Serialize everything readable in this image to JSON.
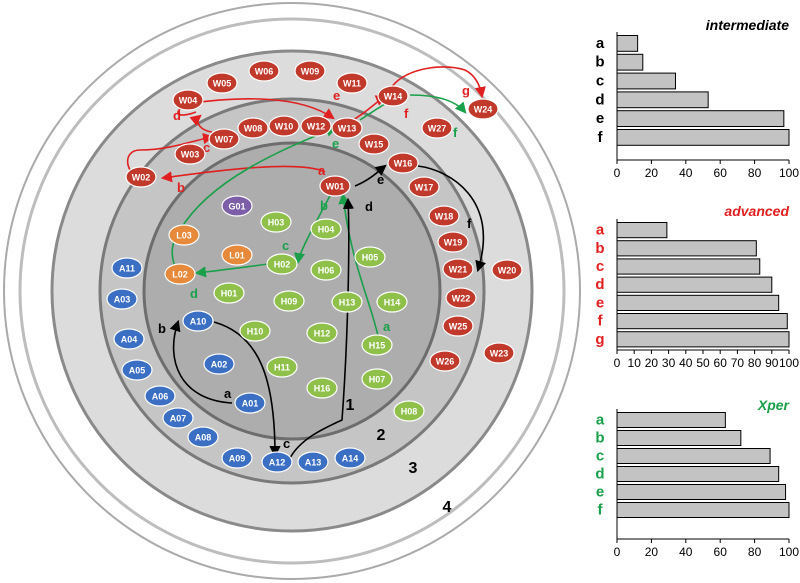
{
  "colors": {
    "web": "#c0392b",
    "healthy": "#8fc04a",
    "learner": "#e6893a",
    "app": "#3b6fc4",
    "group": "#7b5ea7",
    "red": "#e02020",
    "green": "#1aa04a",
    "black": "#000000"
  },
  "diagram": {
    "ring_labels": [
      "1",
      "2",
      "3",
      "4"
    ],
    "nodes": [
      {
        "id": "W05",
        "type": "web"
      },
      {
        "id": "W06",
        "type": "web"
      },
      {
        "id": "W09",
        "type": "web"
      },
      {
        "id": "W11",
        "type": "web"
      },
      {
        "id": "W04",
        "type": "web"
      },
      {
        "id": "W14",
        "type": "web"
      },
      {
        "id": "W24",
        "type": "web"
      },
      {
        "id": "W07",
        "type": "web"
      },
      {
        "id": "W08",
        "type": "web"
      },
      {
        "id": "W10",
        "type": "web"
      },
      {
        "id": "W12",
        "type": "web"
      },
      {
        "id": "W13",
        "type": "web"
      },
      {
        "id": "W27",
        "type": "web"
      },
      {
        "id": "W03",
        "type": "web"
      },
      {
        "id": "W15",
        "type": "web"
      },
      {
        "id": "W16",
        "type": "web"
      },
      {
        "id": "W02",
        "type": "web"
      },
      {
        "id": "W01",
        "type": "web"
      },
      {
        "id": "W17",
        "type": "web"
      },
      {
        "id": "W18",
        "type": "web"
      },
      {
        "id": "W19",
        "type": "web"
      },
      {
        "id": "W21",
        "type": "web"
      },
      {
        "id": "W20",
        "type": "web"
      },
      {
        "id": "W22",
        "type": "web"
      },
      {
        "id": "W25",
        "type": "web"
      },
      {
        "id": "W23",
        "type": "web"
      },
      {
        "id": "W26",
        "type": "web"
      },
      {
        "id": "G01",
        "type": "group"
      },
      {
        "id": "H03",
        "type": "healthy"
      },
      {
        "id": "H04",
        "type": "healthy"
      },
      {
        "id": "H05",
        "type": "healthy"
      },
      {
        "id": "H02",
        "type": "healthy"
      },
      {
        "id": "H06",
        "type": "healthy"
      },
      {
        "id": "H01",
        "type": "healthy"
      },
      {
        "id": "H09",
        "type": "healthy"
      },
      {
        "id": "H13",
        "type": "healthy"
      },
      {
        "id": "H14",
        "type": "healthy"
      },
      {
        "id": "H10",
        "type": "healthy"
      },
      {
        "id": "H12",
        "type": "healthy"
      },
      {
        "id": "H15",
        "type": "healthy"
      },
      {
        "id": "H11",
        "type": "healthy"
      },
      {
        "id": "H16",
        "type": "healthy"
      },
      {
        "id": "H07",
        "type": "healthy"
      },
      {
        "id": "H08",
        "type": "healthy"
      },
      {
        "id": "L03",
        "type": "learner"
      },
      {
        "id": "L01",
        "type": "learner"
      },
      {
        "id": "L02",
        "type": "learner"
      },
      {
        "id": "A11",
        "type": "app"
      },
      {
        "id": "A03",
        "type": "app"
      },
      {
        "id": "A10",
        "type": "app"
      },
      {
        "id": "A04",
        "type": "app"
      },
      {
        "id": "A02",
        "type": "app"
      },
      {
        "id": "A05",
        "type": "app"
      },
      {
        "id": "A06",
        "type": "app"
      },
      {
        "id": "A01",
        "type": "app"
      },
      {
        "id": "A07",
        "type": "app"
      },
      {
        "id": "A08",
        "type": "app"
      },
      {
        "id": "A09",
        "type": "app"
      },
      {
        "id": "A12",
        "type": "app"
      },
      {
        "id": "A13",
        "type": "app"
      },
      {
        "id": "A14",
        "type": "app"
      }
    ],
    "paths": [
      {
        "color": "red",
        "labels": [
          "a",
          "b",
          "c",
          "d",
          "e",
          "f",
          "g"
        ]
      },
      {
        "color": "green",
        "labels": [
          "a",
          "b",
          "c",
          "d",
          "e",
          "f"
        ]
      },
      {
        "color": "black",
        "labels": [
          "a",
          "b",
          "c",
          "d",
          "e",
          "f"
        ]
      }
    ]
  },
  "chart_data": [
    {
      "type": "bar",
      "orientation": "horizontal",
      "title": "intermediate",
      "title_color": "#000000",
      "categories": [
        "a",
        "b",
        "c",
        "d",
        "e",
        "f"
      ],
      "category_color": "#000000",
      "values": [
        12,
        15,
        34,
        53,
        97,
        100
      ],
      "xlim": [
        0,
        100
      ],
      "xticks": [
        0,
        20,
        40,
        60,
        80,
        100
      ]
    },
    {
      "type": "bar",
      "orientation": "horizontal",
      "title": "advanced",
      "title_color": "#e02020",
      "categories": [
        "a",
        "b",
        "c",
        "d",
        "e",
        "f",
        "g"
      ],
      "category_color": "#e02020",
      "values": [
        29,
        81,
        83,
        90,
        94,
        99,
        100
      ],
      "xlim": [
        0,
        100
      ],
      "xticks": [
        0,
        10,
        20,
        30,
        40,
        50,
        60,
        70,
        80,
        90,
        100
      ]
    },
    {
      "type": "bar",
      "orientation": "horizontal",
      "title": "Xper",
      "title_color": "#1aa04a",
      "categories": [
        "a",
        "b",
        "c",
        "d",
        "e",
        "f"
      ],
      "category_color": "#1aa04a",
      "values": [
        63,
        72,
        89,
        94,
        98,
        100
      ],
      "xlim": [
        0,
        100
      ],
      "xticks": [
        0,
        20,
        40,
        60,
        80,
        100
      ]
    }
  ]
}
